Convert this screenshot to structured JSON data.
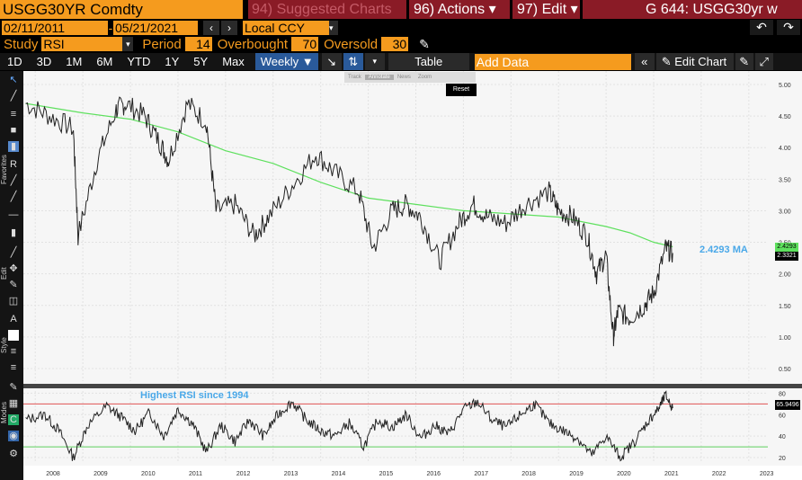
{
  "header": {
    "ticker": "USGG30YR Comdty",
    "suggested": "94) Suggested Charts",
    "actions": "96) Actions ▾",
    "edit": "97) Edit ▾",
    "right_title": "G 644: USGG30yr w"
  },
  "dates": {
    "start": "02/11/2011",
    "end": "05/21/2021",
    "currency": "Local CCY"
  },
  "study": {
    "study_label": "Study",
    "study_value": "RSI",
    "period_label": "Period",
    "period_value": "14",
    "overbought_label": "Overbought",
    "overbought_value": "70",
    "oversold_label": "Oversold",
    "oversold_value": "30"
  },
  "toolbar": {
    "ranges": [
      "1D",
      "3D",
      "1M",
      "6M",
      "YTD",
      "1Y",
      "5Y",
      "Max"
    ],
    "weekly": "Weekly ▼",
    "table": "Table",
    "add_data_placeholder": "Add Data",
    "edit_chart": "Edit Chart"
  },
  "popup": {
    "track": "Track",
    "annotate": "Annotate",
    "news": "News",
    "zoom": "Zoom",
    "reset": "Reset"
  },
  "side_labels": {
    "favorites": "Favorites",
    "edit": "Edit",
    "style": "Style",
    "modes": "Modes"
  },
  "annotations": {
    "ma_label": "2.4293 MA",
    "rsi_note": "Highest RSI since 1994",
    "price_last": "2.3321",
    "ma_last": "2.4293",
    "rsi_last": "65.9496"
  },
  "colors": {
    "price": "#222222",
    "ma": "#5ee05e",
    "rsi": "#222222",
    "overbought_line": "#e05555",
    "oversold_line": "#5ecf5e",
    "ma_text": "#4aa8e8"
  },
  "chart_data": [
    {
      "type": "line",
      "title": "USGG30YR Comdty",
      "ylim": [
        0.3,
        5.1
      ],
      "yticks": [
        0.5,
        1.0,
        1.5,
        2.0,
        2.5,
        3.0,
        3.5,
        4.0,
        4.5,
        5.0
      ],
      "ytick_labels": [
        "0.50",
        "1.00",
        "1.50",
        "2.00",
        "2.50",
        "3.00",
        "3.50",
        "4.00",
        "4.50",
        "5.00"
      ],
      "x_labels": [
        "2008",
        "2009",
        "2010",
        "2011",
        "2012",
        "2013",
        "2014",
        "2015",
        "2016",
        "2017",
        "2018",
        "2019",
        "2020",
        "2021",
        "2022",
        "2023"
      ],
      "series": [
        {
          "name": "Price",
          "x": [
            2007.8,
            2008.3,
            2008.8,
            2008.9,
            2009.3,
            2009.7,
            2009.9,
            2010.3,
            2010.6,
            2010.8,
            2011.2,
            2011.6,
            2011.8,
            2012.2,
            2012.6,
            2012.9,
            2013.4,
            2013.9,
            2014.3,
            2014.8,
            2015.1,
            2015.5,
            2015.8,
            2016.1,
            2016.5,
            2016.9,
            2017.2,
            2017.5,
            2017.9,
            2018.3,
            2018.8,
            2019.0,
            2019.3,
            2019.6,
            2019.8,
            2020.0,
            2020.15,
            2020.25,
            2020.5,
            2020.8,
            2021.0,
            2021.25,
            2021.4
          ],
          "y": [
            4.7,
            4.5,
            4.3,
            2.6,
            3.8,
            4.6,
            4.7,
            4.5,
            4.1,
            3.8,
            4.7,
            4.4,
            3.0,
            3.1,
            2.6,
            2.9,
            3.4,
            3.9,
            3.6,
            3.3,
            2.4,
            3.0,
            3.1,
            2.9,
            2.2,
            2.8,
            3.1,
            2.9,
            2.8,
            3.1,
            3.3,
            3.0,
            2.9,
            2.6,
            2.0,
            2.3,
            1.0,
            1.4,
            1.3,
            1.5,
            1.7,
            2.4,
            2.33
          ]
        },
        {
          "name": "MA",
          "x": [
            2007.8,
            2009.0,
            2010.0,
            2011.0,
            2012.0,
            2013.0,
            2014.0,
            2015.0,
            2016.0,
            2017.0,
            2018.0,
            2019.0,
            2020.0,
            2020.5,
            2021.0,
            2021.4
          ],
          "y": [
            4.7,
            4.55,
            4.45,
            4.25,
            3.95,
            3.75,
            3.45,
            3.2,
            3.1,
            3.0,
            2.95,
            2.9,
            2.75,
            2.65,
            2.5,
            2.43
          ]
        }
      ]
    },
    {
      "type": "line",
      "title": "RSI",
      "ylim": [
        15,
        82
      ],
      "yticks": [
        20,
        40,
        60,
        80
      ],
      "ytick_labels": [
        "20",
        "40",
        "60",
        "80"
      ],
      "overbought": 70,
      "oversold": 30,
      "series": [
        {
          "name": "RSI",
          "x": [
            2007.8,
            2008.2,
            2008.5,
            2008.8,
            2009.1,
            2009.5,
            2009.8,
            2010.1,
            2010.4,
            2010.7,
            2011.0,
            2011.3,
            2011.6,
            2011.9,
            2012.2,
            2012.5,
            2012.8,
            2013.1,
            2013.4,
            2013.7,
            2014.0,
            2014.3,
            2014.6,
            2014.9,
            2015.2,
            2015.5,
            2015.8,
            2016.1,
            2016.4,
            2016.7,
            2017.0,
            2017.3,
            2017.6,
            2017.9,
            2018.2,
            2018.5,
            2018.8,
            2019.1,
            2019.4,
            2019.7,
            2020.0,
            2020.3,
            2020.6,
            2020.9,
            2021.1,
            2021.25,
            2021.4
          ],
          "y": [
            55,
            60,
            45,
            20,
            50,
            68,
            58,
            45,
            62,
            40,
            65,
            52,
            25,
            50,
            35,
            55,
            40,
            60,
            72,
            55,
            45,
            40,
            52,
            30,
            55,
            48,
            60,
            38,
            50,
            42,
            65,
            72,
            55,
            48,
            60,
            70,
            52,
            45,
            38,
            22,
            40,
            20,
            35,
            55,
            65,
            78,
            66
          ]
        }
      ]
    }
  ]
}
